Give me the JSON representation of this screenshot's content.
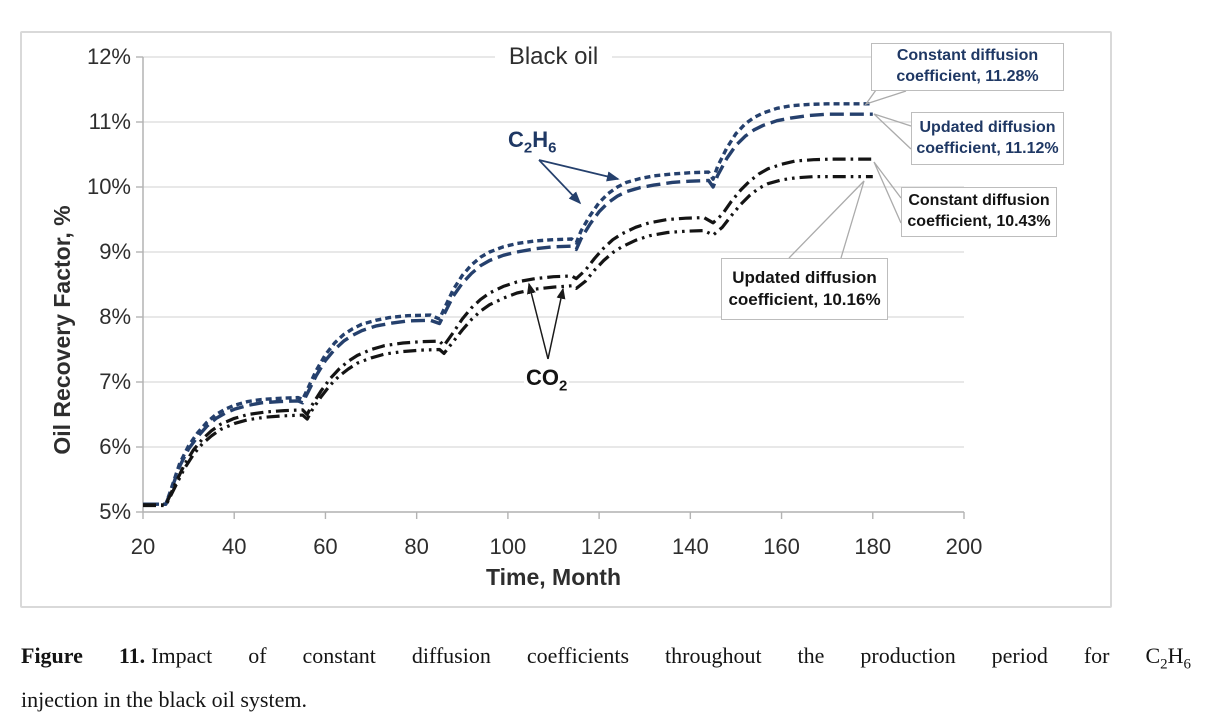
{
  "figure": {
    "title": "Black oil",
    "x_axis_label": "Time, Month",
    "y_axis_label": "Oil Recovery Factor, %"
  },
  "chart_data": {
    "type": "line",
    "title": "Black oil",
    "xlabel": "Time, Month",
    "ylabel": "Oil Recovery Factor, %",
    "xlim": [
      20,
      200
    ],
    "ylim_pct": [
      5,
      12
    ],
    "x_ticks": [
      20,
      40,
      60,
      80,
      100,
      120,
      140,
      160,
      180,
      200
    ],
    "y_ticks": [
      12,
      11,
      10,
      9,
      8,
      7,
      6,
      5
    ],
    "y_tick_suffix": "%",
    "grid": true,
    "legend_position": "none (callout annotations)",
    "colors": {
      "c2h6": "#25406d",
      "co2": "#141414",
      "gridline": "#d9d9d9",
      "axis": "#b3b3b3",
      "leader": "#ababab"
    },
    "series": [
      {
        "name": "C2H6 constant diffusion coefficient",
        "gas": "C2H6",
        "color": "#25406d",
        "dash": "6 4",
        "width": 3.4,
        "final_value_pct": 11.28,
        "points": [
          [
            20,
            5.12
          ],
          [
            25,
            5.12
          ],
          [
            26,
            5.32
          ],
          [
            28,
            5.74
          ],
          [
            30,
            6.02
          ],
          [
            32,
            6.22
          ],
          [
            34,
            6.38
          ],
          [
            36,
            6.5
          ],
          [
            38,
            6.58
          ],
          [
            40,
            6.64
          ],
          [
            43,
            6.7
          ],
          [
            46,
            6.73
          ],
          [
            50,
            6.75
          ],
          [
            54,
            6.76
          ],
          [
            55,
            6.73
          ],
          [
            56,
            6.88
          ],
          [
            58,
            7.18
          ],
          [
            60,
            7.42
          ],
          [
            62,
            7.6
          ],
          [
            64,
            7.73
          ],
          [
            66,
            7.82
          ],
          [
            68,
            7.89
          ],
          [
            71,
            7.95
          ],
          [
            74,
            7.99
          ],
          [
            78,
            8.02
          ],
          [
            83,
            8.03
          ],
          [
            85,
            7.97
          ],
          [
            86,
            8.12
          ],
          [
            88,
            8.42
          ],
          [
            90,
            8.64
          ],
          [
            92,
            8.8
          ],
          [
            94,
            8.92
          ],
          [
            96,
            9.0
          ],
          [
            99,
            9.08
          ],
          [
            102,
            9.13
          ],
          [
            106,
            9.17
          ],
          [
            110,
            9.19
          ],
          [
            114,
            9.2
          ],
          [
            115,
            9.14
          ],
          [
            116,
            9.32
          ],
          [
            118,
            9.56
          ],
          [
            120,
            9.76
          ],
          [
            122,
            9.9
          ],
          [
            124,
            10.0
          ],
          [
            126,
            10.07
          ],
          [
            129,
            10.13
          ],
          [
            132,
            10.17
          ],
          [
            136,
            10.2
          ],
          [
            140,
            10.22
          ],
          [
            144,
            10.23
          ],
          [
            145,
            10.12
          ],
          [
            146,
            10.32
          ],
          [
            148,
            10.6
          ],
          [
            150,
            10.82
          ],
          [
            152,
            10.97
          ],
          [
            154,
            11.07
          ],
          [
            156,
            11.14
          ],
          [
            159,
            11.21
          ],
          [
            162,
            11.25
          ],
          [
            166,
            11.27
          ],
          [
            170,
            11.28
          ],
          [
            175,
            11.28
          ],
          [
            180,
            11.28
          ]
        ]
      },
      {
        "name": "C2H6 updated diffusion coefficient",
        "gas": "C2H6",
        "color": "#25406d",
        "dash": "14 6",
        "width": 3.4,
        "final_value_pct": 11.12,
        "points": [
          [
            20,
            5.12
          ],
          [
            25,
            5.12
          ],
          [
            26,
            5.3
          ],
          [
            28,
            5.7
          ],
          [
            30,
            5.97
          ],
          [
            32,
            6.16
          ],
          [
            34,
            6.32
          ],
          [
            36,
            6.44
          ],
          [
            38,
            6.52
          ],
          [
            40,
            6.58
          ],
          [
            43,
            6.64
          ],
          [
            46,
            6.68
          ],
          [
            50,
            6.7
          ],
          [
            54,
            6.71
          ],
          [
            55,
            6.68
          ],
          [
            56,
            6.82
          ],
          [
            58,
            7.1
          ],
          [
            60,
            7.33
          ],
          [
            62,
            7.5
          ],
          [
            64,
            7.63
          ],
          [
            66,
            7.72
          ],
          [
            68,
            7.79
          ],
          [
            71,
            7.86
          ],
          [
            74,
            7.9
          ],
          [
            78,
            7.94
          ],
          [
            83,
            7.95
          ],
          [
            85,
            7.9
          ],
          [
            86,
            8.04
          ],
          [
            88,
            8.32
          ],
          [
            90,
            8.52
          ],
          [
            92,
            8.67
          ],
          [
            94,
            8.79
          ],
          [
            96,
            8.87
          ],
          [
            99,
            8.95
          ],
          [
            102,
            9.0
          ],
          [
            106,
            9.05
          ],
          [
            110,
            9.08
          ],
          [
            114,
            9.09
          ],
          [
            115,
            9.04
          ],
          [
            116,
            9.2
          ],
          [
            118,
            9.43
          ],
          [
            120,
            9.62
          ],
          [
            122,
            9.76
          ],
          [
            124,
            9.86
          ],
          [
            126,
            9.93
          ],
          [
            129,
            9.99
          ],
          [
            132,
            10.03
          ],
          [
            136,
            10.07
          ],
          [
            140,
            10.09
          ],
          [
            144,
            10.1
          ],
          [
            145,
            10.0
          ],
          [
            146,
            10.18
          ],
          [
            148,
            10.44
          ],
          [
            150,
            10.64
          ],
          [
            152,
            10.78
          ],
          [
            154,
            10.88
          ],
          [
            156,
            10.95
          ],
          [
            159,
            11.02
          ],
          [
            162,
            11.06
          ],
          [
            166,
            11.1
          ],
          [
            170,
            11.12
          ],
          [
            175,
            11.12
          ],
          [
            180,
            11.12
          ]
        ]
      },
      {
        "name": "CO2 constant diffusion coefficient",
        "gas": "CO2",
        "color": "#141414",
        "dash": "13 5 2.6 5",
        "width": 3.2,
        "final_value_pct": 10.43,
        "points": [
          [
            20,
            5.11
          ],
          [
            25,
            5.11
          ],
          [
            27,
            5.42
          ],
          [
            29,
            5.72
          ],
          [
            31,
            5.95
          ],
          [
            33,
            6.12
          ],
          [
            35,
            6.25
          ],
          [
            37,
            6.35
          ],
          [
            40,
            6.44
          ],
          [
            43,
            6.5
          ],
          [
            47,
            6.54
          ],
          [
            51,
            6.56
          ],
          [
            55,
            6.57
          ],
          [
            56,
            6.5
          ],
          [
            57,
            6.64
          ],
          [
            59,
            6.86
          ],
          [
            61,
            7.05
          ],
          [
            63,
            7.2
          ],
          [
            65,
            7.32
          ],
          [
            67,
            7.41
          ],
          [
            70,
            7.5
          ],
          [
            73,
            7.56
          ],
          [
            77,
            7.6
          ],
          [
            81,
            7.62
          ],
          [
            85,
            7.63
          ],
          [
            86,
            7.56
          ],
          [
            88,
            7.76
          ],
          [
            90,
            7.97
          ],
          [
            92,
            8.14
          ],
          [
            94,
            8.27
          ],
          [
            96,
            8.37
          ],
          [
            99,
            8.47
          ],
          [
            102,
            8.54
          ],
          [
            106,
            8.59
          ],
          [
            110,
            8.62
          ],
          [
            114,
            8.63
          ],
          [
            115,
            8.59
          ],
          [
            117,
            8.72
          ],
          [
            119,
            8.9
          ],
          [
            121,
            9.06
          ],
          [
            123,
            9.19
          ],
          [
            125,
            9.28
          ],
          [
            128,
            9.38
          ],
          [
            131,
            9.45
          ],
          [
            135,
            9.5
          ],
          [
            139,
            9.52
          ],
          [
            143,
            9.53
          ],
          [
            145,
            9.45
          ],
          [
            147,
            9.58
          ],
          [
            149,
            9.78
          ],
          [
            151,
            9.95
          ],
          [
            153,
            10.09
          ],
          [
            155,
            10.2
          ],
          [
            157,
            10.28
          ],
          [
            160,
            10.35
          ],
          [
            163,
            10.4
          ],
          [
            167,
            10.42
          ],
          [
            171,
            10.43
          ],
          [
            180,
            10.43
          ]
        ]
      },
      {
        "name": "CO2 updated diffusion coefficient",
        "gas": "CO2",
        "color": "#141414",
        "dash": "13 5 2.6 5 2.6 5",
        "width": 3.2,
        "final_value_pct": 10.16,
        "points": [
          [
            20,
            5.1
          ],
          [
            25,
            5.1
          ],
          [
            27,
            5.38
          ],
          [
            29,
            5.66
          ],
          [
            31,
            5.88
          ],
          [
            33,
            6.05
          ],
          [
            35,
            6.17
          ],
          [
            37,
            6.27
          ],
          [
            40,
            6.36
          ],
          [
            43,
            6.42
          ],
          [
            47,
            6.46
          ],
          [
            51,
            6.48
          ],
          [
            55,
            6.49
          ],
          [
            56,
            6.43
          ],
          [
            57,
            6.56
          ],
          [
            59,
            6.77
          ],
          [
            61,
            6.95
          ],
          [
            63,
            7.09
          ],
          [
            65,
            7.2
          ],
          [
            67,
            7.29
          ],
          [
            70,
            7.37
          ],
          [
            73,
            7.43
          ],
          [
            77,
            7.47
          ],
          [
            81,
            7.49
          ],
          [
            85,
            7.5
          ],
          [
            86,
            7.44
          ],
          [
            88,
            7.62
          ],
          [
            90,
            7.8
          ],
          [
            92,
            7.96
          ],
          [
            94,
            8.09
          ],
          [
            96,
            8.19
          ],
          [
            99,
            8.29
          ],
          [
            102,
            8.37
          ],
          [
            106,
            8.43
          ],
          [
            110,
            8.46
          ],
          [
            114,
            8.48
          ],
          [
            115,
            8.44
          ],
          [
            117,
            8.55
          ],
          [
            119,
            8.72
          ],
          [
            121,
            8.87
          ],
          [
            123,
            8.99
          ],
          [
            125,
            9.08
          ],
          [
            128,
            9.18
          ],
          [
            131,
            9.25
          ],
          [
            135,
            9.3
          ],
          [
            139,
            9.32
          ],
          [
            143,
            9.33
          ],
          [
            145,
            9.26
          ],
          [
            147,
            9.38
          ],
          [
            149,
            9.56
          ],
          [
            151,
            9.73
          ],
          [
            153,
            9.87
          ],
          [
            155,
            9.98
          ],
          [
            157,
            10.05
          ],
          [
            160,
            10.11
          ],
          [
            163,
            10.14
          ],
          [
            167,
            10.16
          ],
          [
            171,
            10.16
          ],
          [
            180,
            10.16
          ]
        ]
      }
    ],
    "annotations": [
      {
        "line1": "Constant diffusion",
        "line2": "coefficient, 11.28%",
        "value_pct": 11.28,
        "color": "#1f3864"
      },
      {
        "line1": "Updated diffusion",
        "line2": "coefficient, 11.12%",
        "value_pct": 11.12,
        "color": "#1f3864"
      },
      {
        "line1": "Constant diffusion",
        "line2": "coefficient, 10.43%",
        "value_pct": 10.43,
        "color": "#141414"
      },
      {
        "line1": "Updated diffusion",
        "line2": "coefficient, 10.16%",
        "value_pct": 10.16,
        "color": "#141414"
      }
    ],
    "gas_labels": {
      "c2h6": {
        "base1": "C",
        "sub1": "2",
        "base2": "H",
        "sub2": "6",
        "color": "#1f3864"
      },
      "co2": {
        "base": "CO",
        "sub": "2",
        "color": "#141414"
      }
    }
  },
  "caption": {
    "label": "Figure 11.",
    "body": "Impact of constant diffusion coefficients throughout the production period for C",
    "chem_sub1": "2",
    "chem_mid": "H",
    "chem_sub2": "6",
    "line2": "injection in the black oil system."
  }
}
